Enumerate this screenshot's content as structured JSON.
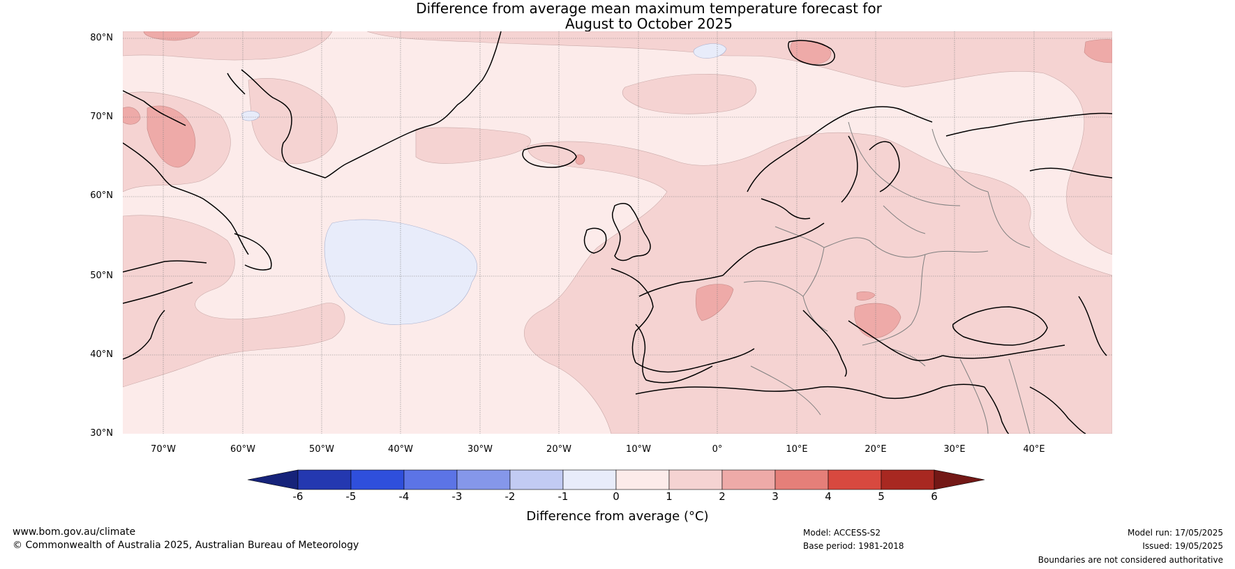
{
  "title_line1": "Difference from average mean maximum temperature forecast for",
  "title_line2": "August to October 2025",
  "lat_labels": [
    "80°N",
    "70°N",
    "60°N",
    "50°N",
    "40°N",
    "30°N"
  ],
  "lon_labels": [
    "70°W",
    "60°W",
    "50°W",
    "40°W",
    "30°W",
    "20°W",
    "10°W",
    "0°",
    "10°E",
    "20°E",
    "30°E",
    "40°E"
  ],
  "colorbar": {
    "ticks": [
      "-6",
      "-5",
      "-4",
      "-3",
      "-2",
      "-1",
      "0",
      "1",
      "2",
      "3",
      "4",
      "5",
      "6"
    ],
    "colors": [
      "#16237a",
      "#2438b0",
      "#2f4fdc",
      "#5c74e6",
      "#8597ea",
      "#c2cbf3",
      "#e8ecfa",
      "#fcebea",
      "#f5d3d2",
      "#eeaaa8",
      "#e57f79",
      "#d8493f",
      "#a82821",
      "#731816"
    ],
    "label": "Difference from average (°C)"
  },
  "map_colors": {
    "base": "#fcebea",
    "warm1": "#f5d3d2",
    "warm2": "#eeaaa8",
    "cool": "#e8ecfa",
    "coast": "#000000",
    "border": "#7f7f7f",
    "grid": "#7f7f7f"
  },
  "footer": {
    "site": "www.bom.gov.au/climate",
    "copyright": "© Commonwealth of Australia 2025, Australian Bureau of Meteorology",
    "model": "Model: ACCESS-S2",
    "base_period": "Base period: 1981-2018",
    "model_run": "Model run: 17/05/2025",
    "issued": "Issued: 19/05/2025",
    "disclaimer": "Boundaries are not considered authoritative"
  }
}
